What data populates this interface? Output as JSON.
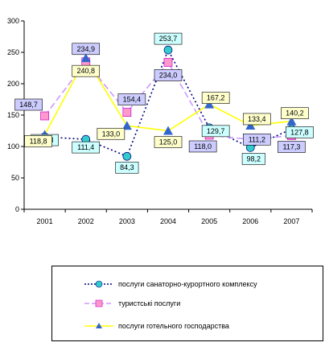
{
  "chart_data": {
    "type": "line",
    "title": "",
    "xlabel": "",
    "ylabel": "",
    "ylim": [
      0,
      300
    ],
    "yticks": [
      0,
      50,
      100,
      150,
      200,
      250,
      300
    ],
    "grid": false,
    "legend_position": "bottom",
    "categories": [
      "2001",
      "2002",
      "2003",
      "2004",
      "2005",
      "2006",
      "2007"
    ],
    "series": [
      {
        "name": "послуги санаторно-курортного комплексу",
        "color": "#000080",
        "marker_color": "#33cccc",
        "marker": "circle",
        "label_bg": "#ccffff",
        "line_style": "dotted",
        "values": [
          115.3,
          111.4,
          84.3,
          253.7,
          129.7,
          98.2,
          127.8
        ],
        "labels": [
          "115,3",
          "111,4",
          "84,3",
          "253,7",
          "129,7",
          "98,2",
          "127,8"
        ]
      },
      {
        "name": "туристські послуги",
        "color": "#cc99ff",
        "marker_color": "#ff99cc",
        "marker": "square",
        "label_bg": "#ccccff",
        "line_style": "dashed",
        "values": [
          148.7,
          234.9,
          154.4,
          234.0,
          118.0,
          111.2,
          117.3
        ],
        "labels": [
          "148,7",
          "234,9",
          "154,4",
          "234,0",
          "118,0",
          "111,2",
          "117,3"
        ]
      },
      {
        "name": "послуги готельного господарства",
        "color": "#ffff00",
        "marker_color": "#3366cc",
        "marker": "triangle",
        "label_bg": "#ffffcc",
        "line_style": "solid",
        "values": [
          118.8,
          240.8,
          133.0,
          125.0,
          167.2,
          133.4,
          140.2
        ],
        "labels": [
          "118,8",
          "240,8",
          "133,0",
          "125,0",
          "167,2",
          "133,4",
          "140,2"
        ]
      }
    ]
  }
}
